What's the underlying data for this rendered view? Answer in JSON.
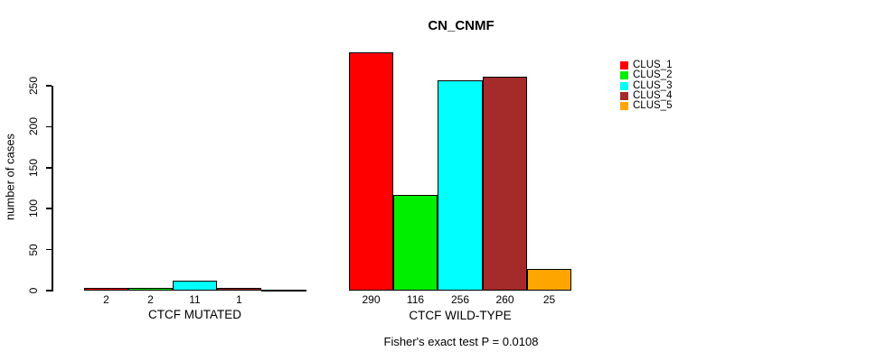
{
  "chart_data": {
    "type": "bar",
    "title": "CN_CNMF",
    "ylabel": "number of cases",
    "subtitle": "Fisher's exact test P = 0.0108",
    "background_color": "#ffffff",
    "axis_color": "#000000",
    "y_axis": {
      "ticks": [
        0,
        50,
        100,
        150,
        200,
        250
      ],
      "min": 0,
      "tick_max": 250,
      "grid": false
    },
    "legend": {
      "position": "top-right",
      "entries": [
        {
          "label": "CLUS_1",
          "color": "#FF0000"
        },
        {
          "label": "CLUS_2",
          "color": "#00EE00"
        },
        {
          "label": "CLUS_3",
          "color": "#00FFFF"
        },
        {
          "label": "CLUS_4",
          "color": "#A52A2A"
        },
        {
          "label": "CLUS_5",
          "color": "#FFA500"
        }
      ]
    },
    "groups": [
      {
        "label": "CTCF MUTATED",
        "values": [
          2,
          2,
          11,
          1,
          0
        ],
        "bar_labels": [
          "2",
          "2",
          "11",
          "1",
          ""
        ]
      },
      {
        "label": "CTCF WILD-TYPE",
        "values": [
          290,
          116,
          256,
          260,
          25
        ],
        "bar_labels": [
          "290",
          "116",
          "256",
          "260",
          "25"
        ]
      }
    ]
  }
}
